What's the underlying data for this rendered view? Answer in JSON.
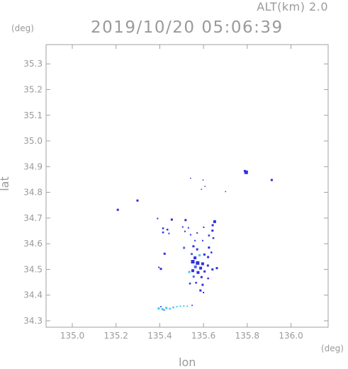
{
  "chart_data": {
    "type": "scatter",
    "title": "2019/10/20 05:06:39",
    "subtitle": "ALT(km) 2.0",
    "xlabel": "lon",
    "ylabel": "lat",
    "xunit": "(deg)",
    "yunit": "(deg)",
    "xlim": [
      134.88,
      136.17
    ],
    "ylim": [
      34.275,
      35.375
    ],
    "xticks": [
      "135.0",
      "135.2",
      "135.4",
      "135.6",
      "135.8",
      "136.0"
    ],
    "yticks": [
      "34.3",
      "34.4",
      "34.5",
      "34.6",
      "34.7",
      "34.8",
      "34.9",
      "35.0",
      "35.1",
      "35.2",
      "35.3"
    ],
    "grid": false,
    "colors": {
      "dark": "#3030e0",
      "mid": "#4a6cf0",
      "light": "#40c8f0",
      "axis": "#a0a0a0"
    },
    "points": [
      {
        "x": 135.208,
        "y": 34.732,
        "c": "dark",
        "s": 3
      },
      {
        "x": 135.298,
        "y": 34.768,
        "c": "dark",
        "s": 3
      },
      {
        "x": 135.541,
        "y": 34.855,
        "c": "dark",
        "s": 1.5
      },
      {
        "x": 135.598,
        "y": 34.848,
        "c": "dark",
        "s": 1.5
      },
      {
        "x": 135.591,
        "y": 34.812,
        "c": "dark",
        "s": 1.5
      },
      {
        "x": 135.607,
        "y": 34.823,
        "c": "dark",
        "s": 1.5
      },
      {
        "x": 135.701,
        "y": 34.803,
        "c": "dark",
        "s": 1.5
      },
      {
        "x": 135.795,
        "y": 34.878,
        "c": "dark",
        "s": 5
      },
      {
        "x": 135.789,
        "y": 34.883,
        "c": "dark",
        "s": 3
      },
      {
        "x": 135.912,
        "y": 34.848,
        "c": "dark",
        "s": 3
      },
      {
        "x": 135.39,
        "y": 34.698,
        "c": "dark",
        "s": 2
      },
      {
        "x": 135.455,
        "y": 34.694,
        "c": "dark",
        "s": 3
      },
      {
        "x": 135.518,
        "y": 34.692,
        "c": "dark",
        "s": 3
      },
      {
        "x": 135.651,
        "y": 34.686,
        "c": "dark",
        "s": 4
      },
      {
        "x": 135.642,
        "y": 34.672,
        "c": "dark",
        "s": 3
      },
      {
        "x": 135.415,
        "y": 34.66,
        "c": "dark",
        "s": 2.5
      },
      {
        "x": 135.435,
        "y": 34.655,
        "c": "dark",
        "s": 2.5
      },
      {
        "x": 135.505,
        "y": 34.665,
        "c": "dark",
        "s": 2
      },
      {
        "x": 135.531,
        "y": 34.662,
        "c": "dark",
        "s": 2
      },
      {
        "x": 135.601,
        "y": 34.664,
        "c": "dark",
        "s": 2
      },
      {
        "x": 135.415,
        "y": 34.644,
        "c": "dark",
        "s": 2.5
      },
      {
        "x": 135.442,
        "y": 34.64,
        "c": "dark",
        "s": 2
      },
      {
        "x": 135.515,
        "y": 34.648,
        "c": "dark",
        "s": 2
      },
      {
        "x": 135.541,
        "y": 34.635,
        "c": "dark",
        "s": 2
      },
      {
        "x": 135.571,
        "y": 34.642,
        "c": "dark",
        "s": 2
      },
      {
        "x": 135.641,
        "y": 34.651,
        "c": "dark",
        "s": 3
      },
      {
        "x": 135.625,
        "y": 34.632,
        "c": "dark",
        "s": 2.5
      },
      {
        "x": 135.645,
        "y": 34.622,
        "c": "dark",
        "s": 2.5
      },
      {
        "x": 135.561,
        "y": 34.612,
        "c": "dark",
        "s": 2
      },
      {
        "x": 135.596,
        "y": 34.612,
        "c": "dark",
        "s": 2
      },
      {
        "x": 135.511,
        "y": 34.584,
        "c": "mid",
        "s": 3
      },
      {
        "x": 135.554,
        "y": 34.59,
        "c": "dark",
        "s": 3
      },
      {
        "x": 135.571,
        "y": 34.578,
        "c": "dark",
        "s": 3
      },
      {
        "x": 135.625,
        "y": 34.585,
        "c": "dark",
        "s": 3
      },
      {
        "x": 135.636,
        "y": 34.566,
        "c": "dark",
        "s": 2.5
      },
      {
        "x": 135.422,
        "y": 34.561,
        "c": "dark",
        "s": 3
      },
      {
        "x": 135.546,
        "y": 34.56,
        "c": "mid",
        "s": 3
      },
      {
        "x": 135.561,
        "y": 34.545,
        "c": "dark",
        "s": 4
      },
      {
        "x": 135.582,
        "y": 34.555,
        "c": "light",
        "s": 3
      },
      {
        "x": 135.604,
        "y": 34.558,
        "c": "dark",
        "s": 3
      },
      {
        "x": 135.621,
        "y": 34.548,
        "c": "dark",
        "s": 3
      },
      {
        "x": 135.551,
        "y": 34.53,
        "c": "dark",
        "s": 5
      },
      {
        "x": 135.573,
        "y": 34.525,
        "c": "dark",
        "s": 5
      },
      {
        "x": 135.596,
        "y": 34.522,
        "c": "dark",
        "s": 4
      },
      {
        "x": 135.563,
        "y": 34.51,
        "c": "mid",
        "s": 4
      },
      {
        "x": 135.587,
        "y": 34.505,
        "c": "dark",
        "s": 4
      },
      {
        "x": 135.62,
        "y": 34.515,
        "c": "dark",
        "s": 3
      },
      {
        "x": 135.641,
        "y": 34.5,
        "c": "dark",
        "s": 3
      },
      {
        "x": 135.661,
        "y": 34.505,
        "c": "dark",
        "s": 3
      },
      {
        "x": 135.551,
        "y": 34.495,
        "c": "dark",
        "s": 4
      },
      {
        "x": 135.535,
        "y": 34.49,
        "c": "light",
        "s": 3
      },
      {
        "x": 135.575,
        "y": 34.488,
        "c": "dark",
        "s": 4
      },
      {
        "x": 135.605,
        "y": 34.492,
        "c": "dark",
        "s": 3
      },
      {
        "x": 135.405,
        "y": 34.502,
        "c": "dark",
        "s": 3
      },
      {
        "x": 135.396,
        "y": 34.508,
        "c": "dark",
        "s": 2
      },
      {
        "x": 135.555,
        "y": 34.472,
        "c": "mid",
        "s": 3
      },
      {
        "x": 135.591,
        "y": 34.47,
        "c": "dark",
        "s": 3
      },
      {
        "x": 135.621,
        "y": 34.465,
        "c": "dark",
        "s": 2.5
      },
      {
        "x": 135.538,
        "y": 34.445,
        "c": "dark",
        "s": 2.5
      },
      {
        "x": 135.566,
        "y": 34.448,
        "c": "dark",
        "s": 2.5
      },
      {
        "x": 135.596,
        "y": 34.44,
        "c": "dark",
        "s": 3
      },
      {
        "x": 135.586,
        "y": 34.418,
        "c": "dark",
        "s": 3
      },
      {
        "x": 135.6,
        "y": 34.41,
        "c": "dark",
        "s": 2
      },
      {
        "x": 135.395,
        "y": 34.348,
        "c": "light",
        "s": 3
      },
      {
        "x": 135.412,
        "y": 34.345,
        "c": "light",
        "s": 3
      },
      {
        "x": 135.43,
        "y": 34.35,
        "c": "light",
        "s": 3
      },
      {
        "x": 135.446,
        "y": 34.347,
        "c": "light",
        "s": 2.5
      },
      {
        "x": 135.462,
        "y": 34.352,
        "c": "light",
        "s": 2.5
      },
      {
        "x": 135.478,
        "y": 34.355,
        "c": "light",
        "s": 2
      },
      {
        "x": 135.494,
        "y": 34.357,
        "c": "light",
        "s": 2
      },
      {
        "x": 135.51,
        "y": 34.358,
        "c": "light",
        "s": 2
      },
      {
        "x": 135.526,
        "y": 34.357,
        "c": "light",
        "s": 2
      },
      {
        "x": 135.548,
        "y": 34.36,
        "c": "mid",
        "s": 2
      },
      {
        "x": 135.405,
        "y": 34.355,
        "c": "mid",
        "s": 2
      },
      {
        "x": 135.42,
        "y": 34.342,
        "c": "mid",
        "s": 2
      }
    ]
  }
}
